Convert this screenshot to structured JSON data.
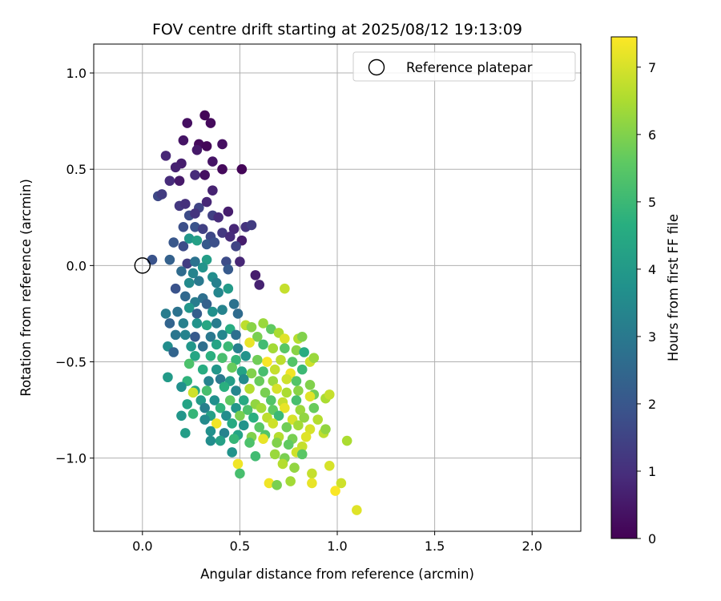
{
  "chart_data": {
    "type": "scatter",
    "title": "FOV centre drift starting at 2025/08/12 19:13:09",
    "xlabel": "Angular distance from reference (arcmin)",
    "ylabel": "Rotation from reference (arcmin)",
    "xlim": [
      -0.25,
      2.25
    ],
    "ylim": [
      -1.38,
      1.15
    ],
    "xticks": [
      0.0,
      0.5,
      1.0,
      1.5,
      2.0
    ],
    "xtick_labels": [
      "0.0",
      "0.5",
      "1.0",
      "1.5",
      "2.0"
    ],
    "yticks": [
      -1.0,
      -0.5,
      0.0,
      0.5,
      1.0
    ],
    "ytick_labels": [
      "−1.0",
      "−0.5",
      "0.0",
      "0.5",
      "1.0"
    ],
    "grid": true,
    "legend": {
      "placement": "top-right",
      "entries": [
        "Reference platepar"
      ]
    },
    "reference_point": {
      "x": 0.0,
      "y": 0.0,
      "marker": "open-circle"
    },
    "colorbar": {
      "label": "Hours from first FF file",
      "range": [
        0,
        7.45
      ],
      "ticks": [
        0,
        1,
        2,
        3,
        4,
        5,
        6,
        7
      ],
      "colormap": "viridis"
    },
    "points_note_hours_range": [
      0,
      7.45
    ],
    "points": [
      [
        0.32,
        0.78,
        0.1
      ],
      [
        0.35,
        0.74,
        0.2
      ],
      [
        0.23,
        0.74,
        0.3
      ],
      [
        0.21,
        0.65,
        0.4
      ],
      [
        0.29,
        0.63,
        0.2
      ],
      [
        0.33,
        0.62,
        0.1
      ],
      [
        0.41,
        0.63,
        0.3
      ],
      [
        0.28,
        0.6,
        0.5
      ],
      [
        0.12,
        0.57,
        0.8
      ],
      [
        0.2,
        0.53,
        0.6
      ],
      [
        0.36,
        0.54,
        0.4
      ],
      [
        0.51,
        0.5,
        0.1
      ],
      [
        0.17,
        0.51,
        0.7
      ],
      [
        0.27,
        0.47,
        0.9
      ],
      [
        0.32,
        0.47,
        0.3
      ],
      [
        0.41,
        0.5,
        0.2
      ],
      [
        0.14,
        0.44,
        0.9
      ],
      [
        0.19,
        0.44,
        0.5
      ],
      [
        0.36,
        0.39,
        0.7
      ],
      [
        0.08,
        0.36,
        1.6
      ],
      [
        0.1,
        0.37,
        1.3
      ],
      [
        0.19,
        0.31,
        1.2
      ],
      [
        0.22,
        0.32,
        1.0
      ],
      [
        0.29,
        0.3,
        1.5
      ],
      [
        0.33,
        0.33,
        0.8
      ],
      [
        0.24,
        0.26,
        1.7
      ],
      [
        0.27,
        0.27,
        1.1
      ],
      [
        0.36,
        0.26,
        1.4
      ],
      [
        0.39,
        0.25,
        0.9
      ],
      [
        0.44,
        0.28,
        0.6
      ],
      [
        0.47,
        0.19,
        0.8
      ],
      [
        0.53,
        0.2,
        1.1
      ],
      [
        0.56,
        0.21,
        1.3
      ],
      [
        0.21,
        0.2,
        1.8
      ],
      [
        0.27,
        0.2,
        1.9
      ],
      [
        0.31,
        0.19,
        1.4
      ],
      [
        0.35,
        0.15,
        1.6
      ],
      [
        0.41,
        0.17,
        1.2
      ],
      [
        0.45,
        0.15,
        0.9
      ],
      [
        0.51,
        0.13,
        0.6
      ],
      [
        0.16,
        0.12,
        2.0
      ],
      [
        0.21,
        0.1,
        1.7
      ],
      [
        0.24,
        0.14,
        3.9
      ],
      [
        0.28,
        0.13,
        4.2
      ],
      [
        0.33,
        0.11,
        2.1
      ],
      [
        0.37,
        0.12,
        1.8
      ],
      [
        0.48,
        0.1,
        1.5
      ],
      [
        0.05,
        0.03,
        1.9
      ],
      [
        0.14,
        0.03,
        2.3
      ],
      [
        0.23,
        0.01,
        1.3
      ],
      [
        0.27,
        0.02,
        2.8
      ],
      [
        0.33,
        0.03,
        4.1
      ],
      [
        0.31,
        -0.01,
        3.8
      ],
      [
        0.43,
        0.02,
        1.7
      ],
      [
        0.5,
        0.02,
        0.8
      ],
      [
        0.2,
        -0.03,
        2.6
      ],
      [
        0.26,
        -0.04,
        3.3
      ],
      [
        0.36,
        -0.06,
        3.6
      ],
      [
        0.29,
        -0.08,
        3.0
      ],
      [
        0.44,
        -0.02,
        2.1
      ],
      [
        0.58,
        -0.05,
        0.6
      ],
      [
        0.6,
        -0.1,
        0.7
      ],
      [
        0.24,
        -0.09,
        3.5
      ],
      [
        0.38,
        -0.09,
        3.2
      ],
      [
        0.17,
        -0.12,
        1.9
      ],
      [
        0.22,
        -0.16,
        2.5
      ],
      [
        0.31,
        -0.17,
        2.7
      ],
      [
        0.39,
        -0.14,
        3.4
      ],
      [
        0.44,
        -0.12,
        4.0
      ],
      [
        0.47,
        -0.2,
        2.8
      ],
      [
        0.27,
        -0.19,
        3.1
      ],
      [
        0.33,
        -0.2,
        2.3
      ],
      [
        0.73,
        -0.12,
        6.8
      ],
      [
        0.18,
        -0.24,
        2.8
      ],
      [
        0.24,
        -0.22,
        3.9
      ],
      [
        0.28,
        -0.25,
        2.2
      ],
      [
        0.36,
        -0.24,
        3.7
      ],
      [
        0.41,
        -0.23,
        3.3
      ],
      [
        0.49,
        -0.25,
        2.6
      ],
      [
        0.12,
        -0.25,
        3.1
      ],
      [
        0.14,
        -0.3,
        2.4
      ],
      [
        0.21,
        -0.3,
        3.2
      ],
      [
        0.28,
        -0.3,
        3.8
      ],
      [
        0.33,
        -0.31,
        4.4
      ],
      [
        0.38,
        -0.3,
        3.1
      ],
      [
        0.45,
        -0.33,
        4.6
      ],
      [
        0.53,
        -0.31,
        6.7
      ],
      [
        0.56,
        -0.32,
        6.1
      ],
      [
        0.62,
        -0.3,
        6.3
      ],
      [
        0.66,
        -0.33,
        5.6
      ],
      [
        0.7,
        -0.35,
        6.5
      ],
      [
        0.17,
        -0.36,
        2.9
      ],
      [
        0.22,
        -0.36,
        3.3
      ],
      [
        0.27,
        -0.37,
        2.1
      ],
      [
        0.35,
        -0.37,
        3.0
      ],
      [
        0.41,
        -0.36,
        3.4
      ],
      [
        0.48,
        -0.36,
        2.7
      ],
      [
        0.59,
        -0.37,
        5.9
      ],
      [
        0.73,
        -0.38,
        7.1
      ],
      [
        0.8,
        -0.38,
        6.6
      ],
      [
        0.82,
        -0.37,
        6.0
      ],
      [
        0.13,
        -0.42,
        3.6
      ],
      [
        0.16,
        -0.45,
        2.4
      ],
      [
        0.25,
        -0.42,
        3.9
      ],
      [
        0.31,
        -0.42,
        2.7
      ],
      [
        0.38,
        -0.41,
        4.3
      ],
      [
        0.44,
        -0.42,
        5.0
      ],
      [
        0.49,
        -0.43,
        3.2
      ],
      [
        0.55,
        -0.4,
        7.2
      ],
      [
        0.62,
        -0.41,
        5.1
      ],
      [
        0.67,
        -0.43,
        6.4
      ],
      [
        0.73,
        -0.43,
        5.5
      ],
      [
        0.79,
        -0.44,
        6.1
      ],
      [
        0.83,
        -0.45,
        4.6
      ],
      [
        0.27,
        -0.47,
        4.4
      ],
      [
        0.35,
        -0.47,
        4.7
      ],
      [
        0.41,
        -0.48,
        5.2
      ],
      [
        0.48,
        -0.49,
        4.9
      ],
      [
        0.53,
        -0.47,
        3.8
      ],
      [
        0.59,
        -0.49,
        5.8
      ],
      [
        0.64,
        -0.5,
        7.4
      ],
      [
        0.71,
        -0.49,
        6.7
      ],
      [
        0.77,
        -0.5,
        5.4
      ],
      [
        0.86,
        -0.5,
        6.9
      ],
      [
        0.88,
        -0.48,
        6.3
      ],
      [
        0.24,
        -0.51,
        5.3
      ],
      [
        0.31,
        -0.54,
        4.6
      ],
      [
        0.38,
        -0.54,
        3.9
      ],
      [
        0.46,
        -0.53,
        5.7
      ],
      [
        0.51,
        -0.55,
        4.3
      ],
      [
        0.56,
        -0.56,
        6.0
      ],
      [
        0.62,
        -0.55,
        5.2
      ],
      [
        0.68,
        -0.54,
        6.8
      ],
      [
        0.76,
        -0.56,
        7.3
      ],
      [
        0.82,
        -0.54,
        5.0
      ],
      [
        0.13,
        -0.58,
        4.0
      ],
      [
        0.23,
        -0.6,
        4.8
      ],
      [
        0.34,
        -0.6,
        3.3
      ],
      [
        0.4,
        -0.59,
        3.0
      ],
      [
        0.45,
        -0.6,
        4.1
      ],
      [
        0.52,
        -0.59,
        3.5
      ],
      [
        0.6,
        -0.6,
        5.7
      ],
      [
        0.67,
        -0.6,
        6.3
      ],
      [
        0.74,
        -0.59,
        6.9
      ],
      [
        0.79,
        -0.6,
        5.4
      ],
      [
        0.86,
        -0.62,
        6.0
      ],
      [
        0.2,
        -0.63,
        3.7
      ],
      [
        0.27,
        -0.65,
        4.4
      ],
      [
        0.33,
        -0.65,
        5.2
      ],
      [
        0.42,
        -0.63,
        4.7
      ],
      [
        0.48,
        -0.65,
        3.4
      ],
      [
        0.55,
        -0.64,
        6.6
      ],
      [
        0.63,
        -0.66,
        5.9
      ],
      [
        0.69,
        -0.64,
        7.0
      ],
      [
        0.74,
        -0.66,
        6.5
      ],
      [
        0.8,
        -0.65,
        6.1
      ],
      [
        0.88,
        -0.67,
        5.8
      ],
      [
        0.26,
        -0.66,
        6.9
      ],
      [
        0.3,
        -0.7,
        4.0
      ],
      [
        0.37,
        -0.7,
        3.7
      ],
      [
        0.45,
        -0.7,
        5.6
      ],
      [
        0.52,
        -0.7,
        4.5
      ],
      [
        0.58,
        -0.72,
        6.2
      ],
      [
        0.66,
        -0.7,
        5.4
      ],
      [
        0.72,
        -0.71,
        6.8
      ],
      [
        0.79,
        -0.7,
        5.2
      ],
      [
        0.86,
        -0.68,
        7.1
      ],
      [
        0.94,
        -0.69,
        6.5
      ],
      [
        0.96,
        -0.67,
        6.8
      ],
      [
        0.23,
        -0.72,
        4.3
      ],
      [
        0.32,
        -0.74,
        3.2
      ],
      [
        0.4,
        -0.74,
        4.8
      ],
      [
        0.48,
        -0.74,
        3.9
      ],
      [
        0.54,
        -0.75,
        5.3
      ],
      [
        0.61,
        -0.74,
        6.4
      ],
      [
        0.67,
        -0.75,
        5.6
      ],
      [
        0.73,
        -0.74,
        7.2
      ],
      [
        0.81,
        -0.75,
        6.3
      ],
      [
        0.88,
        -0.74,
        5.7
      ],
      [
        0.26,
        -0.77,
        4.9
      ],
      [
        0.35,
        -0.78,
        4.2
      ],
      [
        0.43,
        -0.78,
        3.6
      ],
      [
        0.5,
        -0.78,
        5.9
      ],
      [
        0.57,
        -0.79,
        4.7
      ],
      [
        0.64,
        -0.79,
        6.7
      ],
      [
        0.7,
        -0.78,
        5.0
      ],
      [
        0.77,
        -0.8,
        7.0
      ],
      [
        0.83,
        -0.79,
        6.2
      ],
      [
        0.9,
        -0.8,
        6.6
      ],
      [
        0.2,
        -0.78,
        3.9
      ],
      [
        0.32,
        -0.8,
        3.5
      ],
      [
        0.38,
        -0.82,
        7.3
      ],
      [
        0.46,
        -0.82,
        4.5
      ],
      [
        0.52,
        -0.83,
        3.8
      ],
      [
        0.6,
        -0.84,
        5.5
      ],
      [
        0.67,
        -0.82,
        6.9
      ],
      [
        0.74,
        -0.84,
        5.8
      ],
      [
        0.8,
        -0.83,
        6.4
      ],
      [
        0.86,
        -0.85,
        7.0
      ],
      [
        0.93,
        -0.87,
        6.7
      ],
      [
        0.22,
        -0.87,
        4.1
      ],
      [
        0.35,
        -0.86,
        3.7
      ],
      [
        0.42,
        -0.87,
        3.3
      ],
      [
        0.49,
        -0.88,
        4.3
      ],
      [
        0.56,
        -0.89,
        6.0
      ],
      [
        0.63,
        -0.88,
        5.4
      ],
      [
        0.7,
        -0.89,
        6.6
      ],
      [
        0.77,
        -0.9,
        5.9
      ],
      [
        0.84,
        -0.89,
        7.1
      ],
      [
        0.94,
        -0.85,
        6.2
      ],
      [
        0.35,
        -0.91,
        3.6
      ],
      [
        0.4,
        -0.91,
        4.2
      ],
      [
        0.47,
        -0.9,
        4.9
      ],
      [
        0.55,
        -0.92,
        5.3
      ],
      [
        0.62,
        -0.9,
        7.2
      ],
      [
        0.69,
        -0.92,
        6.0
      ],
      [
        0.75,
        -0.93,
        5.6
      ],
      [
        0.82,
        -0.94,
        6.8
      ],
      [
        1.05,
        -0.91,
        6.5
      ],
      [
        0.46,
        -0.97,
        3.8
      ],
      [
        0.58,
        -0.99,
        5.1
      ],
      [
        0.68,
        -0.98,
        6.3
      ],
      [
        0.73,
        -1.0,
        5.9
      ],
      [
        0.79,
        -0.97,
        6.9
      ],
      [
        0.82,
        -0.98,
        5.5
      ],
      [
        0.49,
        -1.03,
        7.3
      ],
      [
        0.72,
        -1.03,
        6.6
      ],
      [
        0.78,
        -1.05,
        6.2
      ],
      [
        0.96,
        -1.04,
        7.0
      ],
      [
        0.5,
        -1.08,
        5.2
      ],
      [
        0.87,
        -1.08,
        6.8
      ],
      [
        0.65,
        -1.13,
        7.3
      ],
      [
        0.69,
        -1.14,
        5.9
      ],
      [
        0.76,
        -1.12,
        6.4
      ],
      [
        0.87,
        -1.13,
        7.2
      ],
      [
        1.02,
        -1.13,
        6.9
      ],
      [
        0.99,
        -1.17,
        7.4
      ],
      [
        1.1,
        -1.27,
        7.1
      ]
    ]
  }
}
